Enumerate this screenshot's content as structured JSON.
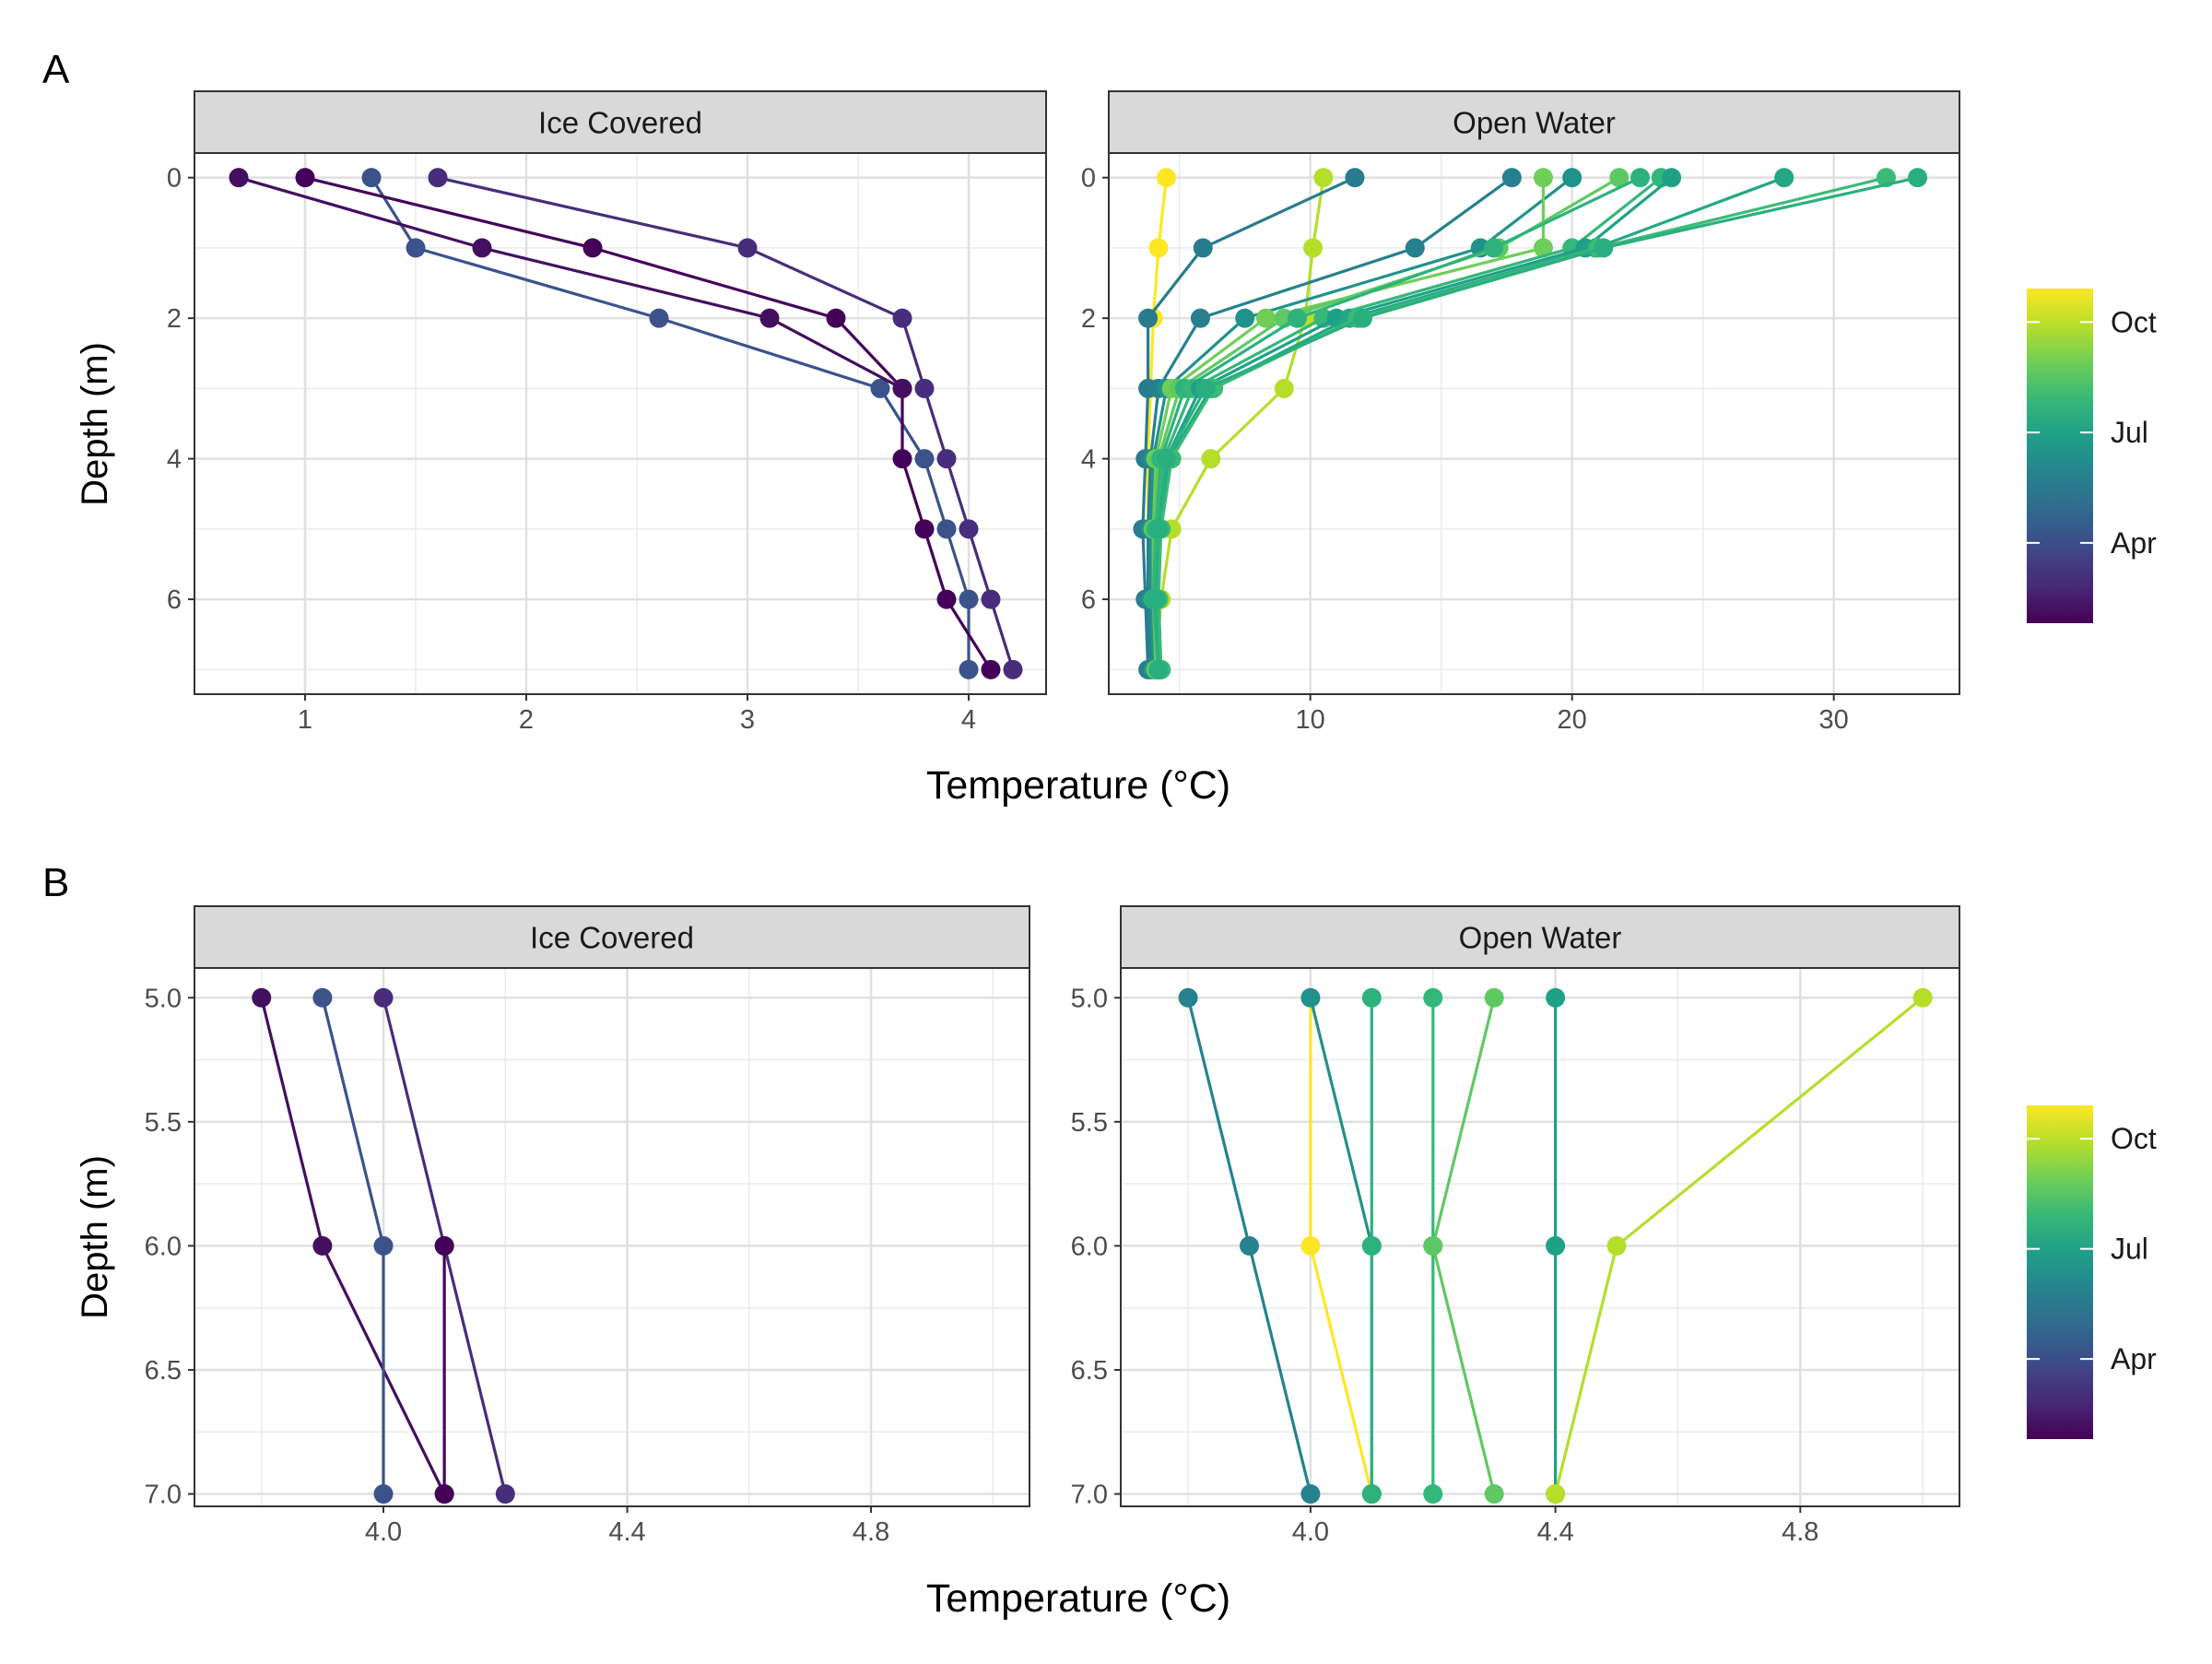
{
  "figure": {
    "panel_labels": [
      "A",
      "B"
    ]
  },
  "colorbar": {
    "ticks": [
      "Oct",
      "Jul",
      "Apr"
    ],
    "tick_fracs": [
      0.9,
      0.57,
      0.24
    ],
    "gradient": [
      "#fde725",
      "#b5de2b",
      "#6ece58",
      "#35b779",
      "#1f9e89",
      "#26828e",
      "#31688e",
      "#3e4989",
      "#482878",
      "#440154"
    ]
  },
  "chart_data": [
    {
      "type": "line",
      "panel": "A",
      "facet": "Ice Covered",
      "xlabel": "Temperature (°C)",
      "ylabel": "Depth (m)",
      "xlim": [
        0.5,
        4.35
      ],
      "ylim": [
        -0.35,
        7.35
      ],
      "xticks": [
        1,
        2,
        3,
        4
      ],
      "xtick_labels": [
        "1",
        "2",
        "3",
        "4"
      ],
      "yticks": [
        0,
        2,
        4,
        6
      ],
      "ytick_labels": [
        "0",
        "2",
        "4",
        "6"
      ],
      "grid": true,
      "series": [
        {
          "color": "#3b528b",
          "points": [
            [
              1.3,
              0
            ],
            [
              1.5,
              1
            ],
            [
              2.6,
              2
            ],
            [
              3.6,
              3
            ],
            [
              3.8,
              4
            ],
            [
              3.9,
              5
            ],
            [
              4.0,
              6
            ],
            [
              4.0,
              7
            ]
          ]
        },
        {
          "color": "#472d7b",
          "points": [
            [
              1.6,
              0
            ],
            [
              3.0,
              1
            ],
            [
              3.7,
              2
            ],
            [
              3.8,
              3
            ],
            [
              3.9,
              4
            ],
            [
              4.0,
              5
            ],
            [
              4.1,
              6
            ],
            [
              4.2,
              7
            ]
          ]
        },
        {
          "color": "#44015a",
          "points": [
            [
              1.0,
              0
            ],
            [
              2.3,
              1
            ],
            [
              3.4,
              2
            ],
            [
              3.7,
              3
            ],
            [
              3.7,
              4
            ],
            [
              3.8,
              5
            ],
            [
              3.9,
              6
            ],
            [
              4.1,
              7
            ]
          ]
        },
        {
          "color": "#440f60",
          "points": [
            [
              0.7,
              0
            ],
            [
              1.8,
              1
            ],
            [
              3.1,
              2
            ],
            [
              3.7,
              3
            ]
          ]
        }
      ]
    },
    {
      "type": "line",
      "panel": "A",
      "facet": "Open Water",
      "xlabel": "Temperature (°C)",
      "ylabel": "Depth (m)",
      "xlim": [
        2.3,
        34.8
      ],
      "ylim": [
        -0.35,
        7.35
      ],
      "xticks": [
        10,
        20,
        30
      ],
      "xtick_labels": [
        "10",
        "20",
        "30"
      ],
      "yticks": [
        0,
        2,
        4,
        6
      ],
      "ytick_labels": [
        "0",
        "2",
        "4",
        "6"
      ],
      "grid": true,
      "series": [
        {
          "color": "#fde725",
          "points": [
            [
              4.5,
              0
            ],
            [
              4.2,
              1
            ],
            [
              4.0,
              2
            ],
            [
              3.9,
              3
            ],
            [
              3.8,
              4
            ],
            [
              3.8,
              5
            ],
            [
              3.9,
              6
            ],
            [
              4.1,
              7
            ]
          ]
        },
        {
          "color": "#b5de2b",
          "points": [
            [
              10.5,
              0
            ],
            [
              10.1,
              1
            ],
            [
              9.8,
              2
            ],
            [
              9.0,
              3
            ],
            [
              6.2,
              4
            ],
            [
              4.7,
              5
            ],
            [
              4.3,
              6
            ],
            [
              4.1,
              7
            ]
          ]
        },
        {
          "color": "#287c8e",
          "points": [
            [
              11.7,
              0
            ],
            [
              5.9,
              1
            ],
            [
              3.8,
              2
            ],
            [
              3.8,
              3
            ],
            [
              3.7,
              4
            ],
            [
              3.6,
              5
            ],
            [
              3.7,
              6
            ],
            [
              3.8,
              7
            ]
          ]
        },
        {
          "color": "#27808e",
          "points": [
            [
              17.7,
              0
            ],
            [
              14.0,
              1
            ],
            [
              5.8,
              2
            ],
            [
              4.2,
              3
            ],
            [
              3.9,
              4
            ],
            [
              3.8,
              5
            ],
            [
              3.8,
              6
            ],
            [
              3.9,
              7
            ]
          ]
        },
        {
          "color": "#20928c",
          "points": [
            [
              20.0,
              0
            ],
            [
              16.5,
              1
            ],
            [
              7.5,
              2
            ],
            [
              4.5,
              3
            ],
            [
              4.0,
              4
            ],
            [
              3.9,
              5
            ],
            [
              3.9,
              6
            ],
            [
              4.0,
              7
            ]
          ]
        },
        {
          "color": "#6ece58",
          "points": [
            [
              18.9,
              0
            ],
            [
              18.9,
              1
            ],
            [
              8.3,
              2
            ],
            [
              4.7,
              3
            ],
            [
              4.1,
              4
            ],
            [
              4.0,
              5
            ],
            [
              4.0,
              6
            ],
            [
              4.1,
              7
            ]
          ]
        },
        {
          "color": "#5ec962",
          "points": [
            [
              21.8,
              0
            ],
            [
              17.2,
              1
            ],
            [
              9.0,
              2
            ],
            [
              5.0,
              3
            ],
            [
              4.2,
              4
            ],
            [
              4.0,
              5
            ],
            [
              4.0,
              6
            ],
            [
              4.1,
              7
            ]
          ]
        },
        {
          "color": "#2db27d",
          "points": [
            [
              22.6,
              0
            ],
            [
              17.0,
              1
            ],
            [
              9.5,
              2
            ],
            [
              5.2,
              3
            ],
            [
              4.3,
              4
            ],
            [
              4.1,
              5
            ],
            [
              4.0,
              6
            ],
            [
              4.2,
              7
            ]
          ]
        },
        {
          "color": "#35b779",
          "points": [
            [
              23.4,
              0
            ],
            [
              20.0,
              1
            ],
            [
              10.5,
              2
            ],
            [
              5.5,
              3
            ],
            [
              4.4,
              4
            ],
            [
              4.1,
              5
            ],
            [
              4.1,
              6
            ],
            [
              4.2,
              7
            ]
          ]
        },
        {
          "color": "#1fa187",
          "points": [
            [
              23.8,
              0
            ],
            [
              20.5,
              1
            ],
            [
              11.0,
              2
            ],
            [
              5.8,
              3
            ],
            [
              4.5,
              4
            ],
            [
              4.2,
              5
            ],
            [
              4.1,
              6
            ],
            [
              4.2,
              7
            ]
          ]
        },
        {
          "color": "#22a884",
          "points": [
            [
              28.1,
              0
            ],
            [
              20.9,
              1
            ],
            [
              11.5,
              2
            ],
            [
              6.2,
              3
            ],
            [
              4.6,
              4
            ],
            [
              4.2,
              5
            ],
            [
              4.2,
              6
            ],
            [
              4.3,
              7
            ]
          ]
        },
        {
          "color": "#3bbb75",
          "points": [
            [
              32.0,
              0
            ],
            [
              21.0,
              1
            ],
            [
              11.8,
              2
            ],
            [
              6.3,
              3
            ],
            [
              4.7,
              4
            ],
            [
              4.3,
              5
            ],
            [
              4.2,
              6
            ],
            [
              4.3,
              7
            ]
          ]
        },
        {
          "color": "#29af7f",
          "points": [
            [
              33.2,
              0
            ],
            [
              21.2,
              1
            ],
            [
              12.0,
              2
            ],
            [
              6.0,
              3
            ],
            [
              4.5,
              4
            ],
            [
              4.2,
              5
            ],
            [
              4.1,
              6
            ],
            [
              4.2,
              7
            ]
          ]
        }
      ]
    },
    {
      "type": "line",
      "panel": "B",
      "facet": "Ice Covered",
      "xlabel": "Temperature (°C)",
      "ylabel": "Depth (m)",
      "xlim": [
        3.69,
        5.06
      ],
      "ylim": [
        4.88,
        7.05
      ],
      "xticks": [
        4.0,
        4.4,
        4.8
      ],
      "xtick_labels": [
        "4.0",
        "4.4",
        "4.8"
      ],
      "yticks": [
        5.0,
        5.5,
        6.0,
        6.5,
        7.0
      ],
      "ytick_labels": [
        "5.0",
        "5.5",
        "6.0",
        "6.5",
        "7.0"
      ],
      "grid": true,
      "series": [
        {
          "color": "#440f60",
          "points": [
            [
              3.8,
              5.0
            ],
            [
              3.9,
              6.0
            ],
            [
              4.1,
              7.0
            ]
          ]
        },
        {
          "color": "#3b528b",
          "points": [
            [
              3.9,
              5.0
            ],
            [
              4.0,
              6.0
            ],
            [
              4.0,
              7.0
            ]
          ]
        },
        {
          "color": "#472d7b",
          "points": [
            [
              4.0,
              5.0
            ],
            [
              4.1,
              6.0
            ],
            [
              4.2,
              7.0
            ]
          ]
        },
        {
          "color": "#44015a",
          "points": [
            [
              4.1,
              6.0
            ],
            [
              4.1,
              7.0
            ]
          ]
        }
      ]
    },
    {
      "type": "line",
      "panel": "B",
      "facet": "Open Water",
      "xlabel": "Temperature (°C)",
      "ylabel": "Depth (m)",
      "xlim": [
        3.69,
        5.06
      ],
      "ylim": [
        4.88,
        7.05
      ],
      "xticks": [
        4.0,
        4.4,
        4.8
      ],
      "xtick_labels": [
        "4.0",
        "4.4",
        "4.8"
      ],
      "yticks": [
        5.0,
        5.5,
        6.0,
        6.5,
        7.0
      ],
      "ytick_labels": [
        "5.0",
        "5.5",
        "6.0",
        "6.5",
        "7.0"
      ],
      "grid": true,
      "series": [
        {
          "color": "#26828e",
          "points": [
            [
              3.8,
              5.0
            ],
            [
              3.9,
              6.0
            ],
            [
              4.0,
              7.0
            ]
          ]
        },
        {
          "color": "#fde725",
          "points": [
            [
              4.0,
              5.0
            ],
            [
              4.0,
              6.0
            ],
            [
              4.1,
              7.0
            ]
          ]
        },
        {
          "color": "#21918c",
          "points": [
            [
              4.0,
              5.0
            ],
            [
              4.1,
              6.0
            ],
            [
              4.1,
              7.0
            ]
          ]
        },
        {
          "color": "#2db27d",
          "points": [
            [
              4.1,
              5.0
            ],
            [
              4.1,
              6.0
            ],
            [
              4.1,
              7.0
            ]
          ]
        },
        {
          "color": "#35b779",
          "points": [
            [
              4.2,
              5.0
            ],
            [
              4.2,
              6.0
            ],
            [
              4.2,
              7.0
            ]
          ]
        },
        {
          "color": "#5ec962",
          "points": [
            [
              4.3,
              5.0
            ],
            [
              4.2,
              6.0
            ],
            [
              4.3,
              7.0
            ]
          ]
        },
        {
          "color": "#1fa187",
          "points": [
            [
              4.4,
              5.0
            ],
            [
              4.4,
              6.0
            ],
            [
              4.4,
              7.0
            ]
          ]
        },
        {
          "color": "#b5de2b",
          "points": [
            [
              5.0,
              5.0
            ],
            [
              4.5,
              6.0
            ],
            [
              4.4,
              7.0
            ]
          ]
        }
      ]
    }
  ]
}
